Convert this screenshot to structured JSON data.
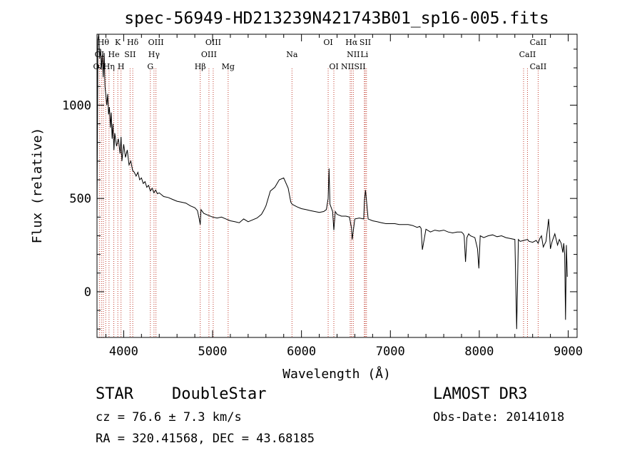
{
  "chart_data": {
    "type": "line",
    "title": "spec-56949-HD213239N421743B01_sp16-005.fits",
    "xlabel": "Wavelength (Å)",
    "ylabel": "Flux (relative)",
    "xlim": [
      3700,
      9100
    ],
    "ylim": [
      -245,
      1380
    ],
    "xticks": [
      4000,
      5000,
      6000,
      7000,
      8000,
      9000
    ],
    "yticks": [
      0,
      500,
      1000
    ],
    "line_color": "#000000",
    "marker_line_color": "#c0392b",
    "series": [
      {
        "x": [
          3700,
          3710,
          3720,
          3730,
          3740,
          3750,
          3760,
          3770,
          3780,
          3790,
          3800,
          3810,
          3820,
          3830,
          3840,
          3850,
          3860,
          3870,
          3880,
          3890,
          3900,
          3920,
          3940,
          3960,
          3970,
          3980,
          4000,
          4020,
          4040,
          4060,
          4080,
          4100,
          4120,
          4140,
          4160,
          4180,
          4200,
          4220,
          4240,
          4260,
          4280,
          4300,
          4320,
          4340,
          4360,
          4380,
          4400,
          4450,
          4500,
          4550,
          4600,
          4650,
          4700,
          4750,
          4800,
          4830,
          4850,
          4861,
          4870,
          4900,
          4950,
          5000,
          5050,
          5100,
          5150,
          5200,
          5250,
          5300,
          5350,
          5400,
          5450,
          5500,
          5550,
          5580,
          5600,
          5650,
          5700,
          5750,
          5800,
          5850,
          5880,
          5893,
          5910,
          5950,
          6000,
          6050,
          6100,
          6150,
          6200,
          6250,
          6280,
          6300,
          6310,
          6320,
          6350,
          6364,
          6380,
          6400,
          6450,
          6500,
          6540,
          6563,
          6570,
          6600,
          6650,
          6700,
          6708,
          6720,
          6750,
          6800,
          6850,
          6900,
          6950,
          7000,
          7050,
          7100,
          7150,
          7200,
          7250,
          7300,
          7330,
          7345,
          7360,
          7400,
          7450,
          7500,
          7550,
          7600,
          7650,
          7700,
          7750,
          7800,
          7820,
          7830,
          7845,
          7860,
          7880,
          7900,
          7950,
          7980,
          7995,
          8010,
          8050,
          8100,
          8150,
          8200,
          8250,
          8300,
          8350,
          8400,
          8420,
          8440,
          8460,
          8500,
          8542,
          8560,
          8600,
          8640,
          8662,
          8680,
          8700,
          8720,
          8750,
          8780,
          8800,
          8820,
          8850,
          8880,
          8900,
          8920,
          8940,
          8950,
          8960,
          8970,
          8980,
          8990
        ],
        "y": [
          390,
          1350,
          1380,
          1250,
          1300,
          1200,
          1270,
          1150,
          1280,
          1100,
          1050,
          1000,
          1060,
          950,
          990,
          880,
          960,
          820,
          900,
          760,
          850,
          780,
          820,
          740,
          830,
          700,
          790,
          720,
          760,
          680,
          700,
          650,
          640,
          620,
          640,
          600,
          610,
          580,
          590,
          560,
          570,
          540,
          555,
          530,
          545,
          525,
          530,
          510,
          505,
          495,
          485,
          480,
          475,
          460,
          450,
          435,
          390,
          360,
          440,
          420,
          410,
          400,
          395,
          400,
          390,
          380,
          375,
          370,
          390,
          375,
          385,
          395,
          415,
          440,
          460,
          540,
          560,
          600,
          610,
          555,
          480,
          470,
          465,
          455,
          445,
          440,
          435,
          430,
          425,
          430,
          440,
          500,
          660,
          470,
          430,
          330,
          430,
          415,
          405,
          405,
          400,
          340,
          280,
          390,
          395,
          390,
          490,
          545,
          390,
          380,
          375,
          370,
          365,
          365,
          365,
          360,
          360,
          360,
          355,
          345,
          350,
          340,
          225,
          335,
          320,
          330,
          325,
          330,
          320,
          315,
          320,
          320,
          310,
          300,
          160,
          290,
          310,
          300,
          290,
          230,
          125,
          300,
          290,
          300,
          305,
          295,
          300,
          290,
          285,
          280,
          -200,
          280,
          270,
          275,
          280,
          270,
          265,
          275,
          260,
          285,
          300,
          240,
          270,
          390,
          230,
          270,
          310,
          250,
          280,
          260,
          210,
          260,
          200,
          -150,
          250,
          80
        ]
      }
    ],
    "lines": [
      {
        "wl": 3727,
        "rows": 1
      },
      {
        "wl": 3750,
        "rows": 1
      },
      {
        "wl": 3771,
        "rows": 1
      },
      {
        "wl": 3798,
        "rows": 2
      },
      {
        "wl": 3835,
        "rows": 2
      },
      {
        "wl": 3889,
        "rows": 2
      },
      {
        "wl": 3934,
        "rows": 2
      },
      {
        "wl": 3970,
        "rows": 2
      },
      {
        "wl": 4072,
        "rows": 2
      },
      {
        "wl": 4102,
        "rows": 2
      },
      {
        "wl": 4300,
        "rows": 2
      },
      {
        "wl": 4341,
        "rows": 2
      },
      {
        "wl": 4363,
        "rows": 2
      },
      {
        "wl": 4861,
        "rows": 2
      },
      {
        "wl": 4959,
        "rows": 2
      },
      {
        "wl": 5007,
        "rows": 2
      },
      {
        "wl": 5175,
        "rows": 2
      },
      {
        "wl": 5893,
        "rows": 2
      },
      {
        "wl": 6300,
        "rows": 2
      },
      {
        "wl": 6364,
        "rows": 2
      },
      {
        "wl": 6548,
        "rows": 2
      },
      {
        "wl": 6563,
        "rows": 2
      },
      {
        "wl": 6583,
        "rows": 2
      },
      {
        "wl": 6707,
        "rows": 2
      },
      {
        "wl": 6717,
        "rows": 2
      },
      {
        "wl": 6731,
        "rows": 2
      },
      {
        "wl": 8498,
        "rows": 2
      },
      {
        "wl": 8542,
        "rows": 2
      },
      {
        "wl": 8662,
        "rows": 2
      }
    ],
    "line_labels": [
      {
        "text": "Hθ",
        "wl": 3771,
        "row": 1
      },
      {
        "text": "K",
        "wl": 3934,
        "row": 1
      },
      {
        "text": "Hδ",
        "wl": 4102,
        "row": 1
      },
      {
        "text": "OIII",
        "wl": 4363,
        "row": 1
      },
      {
        "text": "OIII",
        "wl": 5007,
        "row": 1
      },
      {
        "text": "OI",
        "wl": 6300,
        "row": 1
      },
      {
        "text": "Hα",
        "wl": 6563,
        "row": 1
      },
      {
        "text": "SII",
        "wl": 6717,
        "row": 1
      },
      {
        "text": "CaII",
        "wl": 8662,
        "row": 1
      },
      {
        "text": "OI",
        "wl": 3727,
        "row": 2
      },
      {
        "text": "He",
        "wl": 3889,
        "row": 2
      },
      {
        "text": "SII",
        "wl": 4072,
        "row": 2
      },
      {
        "text": "Hγ",
        "wl": 4341,
        "row": 2
      },
      {
        "text": "OIII",
        "wl": 4959,
        "row": 2
      },
      {
        "text": "Na",
        "wl": 5893,
        "row": 2
      },
      {
        "text": "NII",
        "wl": 6583,
        "row": 2
      },
      {
        "text": "Li",
        "wl": 6707,
        "row": 2
      },
      {
        "text": "CaII",
        "wl": 8542,
        "row": 2
      },
      {
        "text": "OII",
        "wl": 3727,
        "row": 3
      },
      {
        "text": "Hη",
        "wl": 3835,
        "row": 3
      },
      {
        "text": "H",
        "wl": 3970,
        "row": 3
      },
      {
        "text": "G",
        "wl": 4300,
        "row": 3
      },
      {
        "text": "Hβ",
        "wl": 4861,
        "row": 3
      },
      {
        "text": "Mg",
        "wl": 5175,
        "row": 3
      },
      {
        "text": "OI",
        "wl": 6364,
        "row": 3
      },
      {
        "text": "NIISII",
        "wl": 6583,
        "row": 3
      },
      {
        "text": "CaII",
        "wl": 8662,
        "row": 3
      }
    ]
  },
  "info": {
    "class": "STAR",
    "subclass": "DoubleStar",
    "survey": "LAMOST DR3",
    "cz": "cz = 76.6 ± 7.3 km/s",
    "obs_date": "Obs-Date: 20141018",
    "coords": "RA = 320.41568, DEC =  43.68185"
  }
}
